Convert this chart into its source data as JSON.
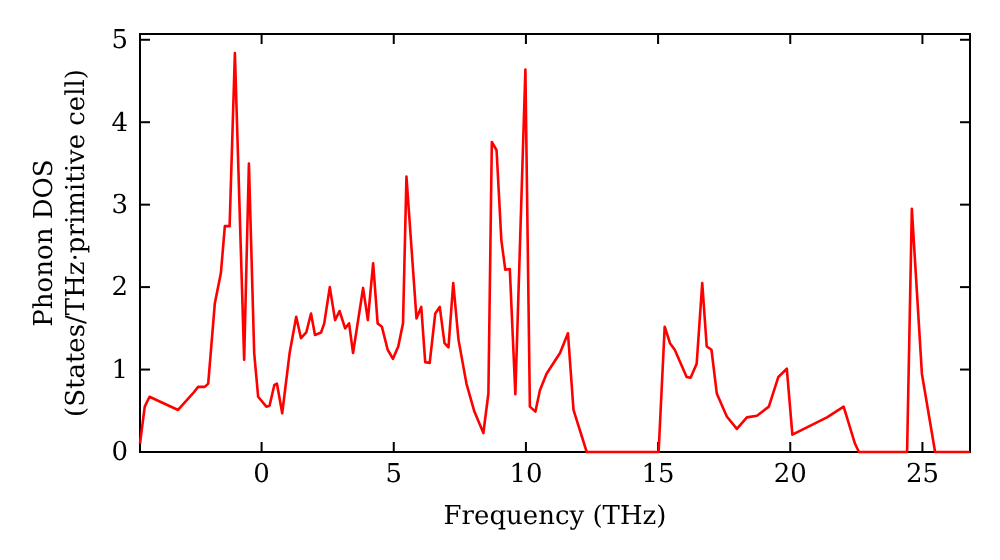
{
  "chart_data": {
    "type": "line",
    "xlabel": "Frequency (THz)",
    "ylabel": "Phonon DOS\n(States/THz·primitive cell)",
    "xlim": [
      -4.6,
      26.8
    ],
    "ylim": [
      0,
      5.07
    ],
    "xticks": [
      0,
      5,
      10,
      15,
      20,
      25
    ],
    "yticks": [
      0,
      1,
      2,
      3,
      4,
      5
    ],
    "grid": false,
    "marker": "none",
    "line_style": "solid",
    "series": [
      {
        "color": "#ff0000",
        "x": [
          -4.6,
          -4.55,
          -4.42,
          -4.24,
          -3.16,
          -2.6,
          -2.4,
          -2.15,
          -2.02,
          -1.77,
          -1.54,
          -1.39,
          -1.21,
          -1.01,
          -0.66,
          -0.48,
          -0.28,
          -0.13,
          0.18,
          0.3,
          0.48,
          0.58,
          0.78,
          1.06,
          1.31,
          1.49,
          1.69,
          1.87,
          2.02,
          2.25,
          2.37,
          2.58,
          2.78,
          2.95,
          3.16,
          3.31,
          3.46,
          3.84,
          4.02,
          4.22,
          4.39,
          4.55,
          4.77,
          4.97,
          5.17,
          5.35,
          5.48,
          5.86,
          6.04,
          6.19,
          6.36,
          6.57,
          6.74,
          6.92,
          7.07,
          7.25,
          7.45,
          7.75,
          8.05,
          8.39,
          8.58,
          8.71,
          8.89,
          9.07,
          9.22,
          9.39,
          9.6,
          9.98,
          10.15,
          10.36,
          10.53,
          10.78,
          11.29,
          11.59,
          11.8,
          12.3,
          15.02,
          15.25,
          15.45,
          15.63,
          16.08,
          16.23,
          16.46,
          16.67,
          16.84,
          17.02,
          17.22,
          17.6,
          17.98,
          18.36,
          18.74,
          19.19,
          19.55,
          19.87,
          20.08,
          21.39,
          22.02,
          22.45,
          22.6,
          24.42,
          24.6,
          24.98,
          25.48,
          26.8
        ],
        "values": [
          0.1,
          0.23,
          0.55,
          0.67,
          0.51,
          0.71,
          0.79,
          0.79,
          0.83,
          1.8,
          2.17,
          2.74,
          2.74,
          4.84,
          1.12,
          3.5,
          1.2,
          0.67,
          0.55,
          0.56,
          0.81,
          0.83,
          0.47,
          1.2,
          1.64,
          1.38,
          1.45,
          1.68,
          1.42,
          1.45,
          1.56,
          2.0,
          1.6,
          1.71,
          1.5,
          1.56,
          1.2,
          1.99,
          1.6,
          2.29,
          1.56,
          1.52,
          1.24,
          1.13,
          1.28,
          1.56,
          3.34,
          1.62,
          1.76,
          1.09,
          1.08,
          1.68,
          1.76,
          1.32,
          1.27,
          2.05,
          1.36,
          0.83,
          0.49,
          0.23,
          0.71,
          3.76,
          3.66,
          2.57,
          2.21,
          2.22,
          0.7,
          4.64,
          0.55,
          0.49,
          0.75,
          0.95,
          1.2,
          1.44,
          0.51,
          0,
          0,
          1.52,
          1.32,
          1.24,
          0.91,
          0.9,
          1.07,
          2.05,
          1.28,
          1.24,
          0.71,
          0.43,
          0.28,
          0.42,
          0.44,
          0.55,
          0.91,
          1.01,
          0.21,
          0.42,
          0.55,
          0.1,
          0,
          0,
          2.95,
          0.95,
          0,
          0
        ]
      }
    ]
  }
}
